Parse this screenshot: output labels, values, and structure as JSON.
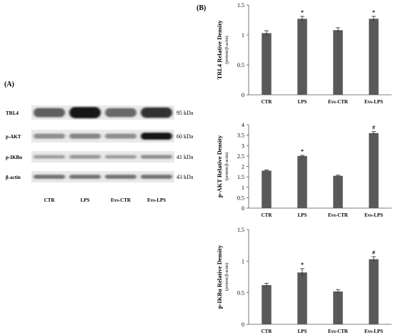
{
  "panel_a": {
    "label": "(A)",
    "rows": [
      {
        "name": "TRL4",
        "kda": "95 kDa",
        "intensity": [
          0.55,
          0.95,
          0.5,
          0.8
        ],
        "band_height": 1.0
      },
      {
        "name": "p-AKT",
        "kda": "60 kDa",
        "intensity": [
          0.3,
          0.35,
          0.3,
          0.95
        ],
        "band_height": 0.7
      },
      {
        "name": "p-IKBα",
        "kda": "41 kDa",
        "intensity": [
          0.22,
          0.25,
          0.22,
          0.3
        ],
        "band_height": 0.6
      },
      {
        "name": "β-actin",
        "kda": "43 kDa",
        "intensity": [
          0.45,
          0.45,
          0.45,
          0.45
        ],
        "band_height": 0.6
      }
    ],
    "lanes": [
      "CTR",
      "LPS",
      "Evs-CTR",
      "Evs-LPS"
    ]
  },
  "panel_b": {
    "label": "(B)"
  },
  "chart_data": [
    {
      "type": "bar",
      "categories": [
        "CTR",
        "LPS",
        "Evs-CTR",
        "Evs-LPS"
      ],
      "values": [
        1.03,
        1.27,
        1.08,
        1.27
      ],
      "errors": [
        0.04,
        0.04,
        0.04,
        0.04
      ],
      "markers": [
        "",
        "*",
        "",
        "*"
      ],
      "ylabel": "TRL4  Relative Density",
      "ylabel_sub": "(protein/β-actin)",
      "ylim": [
        0,
        1.5
      ],
      "yticks": [
        "0",
        "0.5",
        "1",
        "1.5"
      ],
      "grid": false
    },
    {
      "type": "bar",
      "categories": [
        "CTR",
        "LPS",
        "Evs-CTR",
        "Evs-LPS"
      ],
      "values": [
        1.8,
        2.5,
        1.55,
        3.6
      ],
      "errors": [
        0.03,
        0.03,
        0.03,
        0.07
      ],
      "markers": [
        "",
        "*",
        "",
        "#"
      ],
      "ylabel": "p-AKT  Relative Density",
      "ylabel_sub": "(protein/β-actin)",
      "ylim": [
        0,
        4
      ],
      "yticks": [
        "0",
        "0.5",
        "1",
        "1.5",
        "2",
        "2.5",
        "3",
        "3.5",
        "4"
      ],
      "grid": false
    },
    {
      "type": "bar",
      "categories": [
        "CTR",
        "LPS",
        "Evs-CTR",
        "Evs-LPS"
      ],
      "values": [
        0.62,
        0.82,
        0.52,
        1.03
      ],
      "errors": [
        0.03,
        0.06,
        0.03,
        0.04
      ],
      "markers": [
        "",
        "*",
        "",
        "#"
      ],
      "ylabel": "p-IKBα  Relative Density",
      "ylabel_sub": "(protein/β-actin)",
      "ylim": [
        0,
        1.5
      ],
      "yticks": [
        "0",
        "0.5",
        "1",
        "1.5"
      ],
      "grid": false
    }
  ]
}
